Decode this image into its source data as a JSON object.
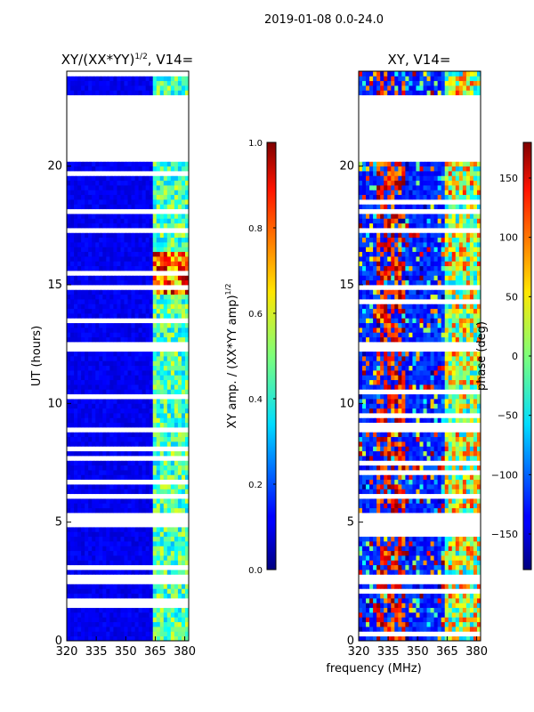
{
  "suptitle": "2019-01-08 0.0-24.0",
  "xlabel_shared": "frequency (MHz)",
  "colors": {
    "frame": "#000000",
    "gap": "#ffffff",
    "low": "#0000a8",
    "high": "#800000"
  },
  "chart_data": [
    {
      "type": "heatmap",
      "title_text": "XY/(XX*YY)",
      "title_sup": "1/2",
      "title_suffix": ", V14=",
      "ylabel": "UT (hours)",
      "xlim": [
        320,
        382
      ],
      "ylim": [
        0,
        24
      ],
      "xticks": [
        320,
        335,
        350,
        365,
        380
      ],
      "yticks": [
        0,
        5,
        10,
        15,
        20
      ],
      "colorbar": {
        "label_text": "XY amp. / (XX*YY amp)",
        "label_sup": "1/2",
        "range": [
          0.0,
          1.0
        ],
        "ticks": [
          0.0,
          0.2,
          0.4,
          0.6,
          0.8,
          1.0
        ],
        "tick_labels": [
          "0.0",
          "0.2",
          "0.4",
          "0.6",
          "0.8",
          "1.0"
        ],
        "colormap": "jet"
      },
      "data_gaps_hours": [
        [
          20.3,
          23.0
        ],
        [
          4.9,
          5.4
        ],
        [
          12.2,
          12.6
        ],
        [
          2.5,
          2.8
        ],
        [
          6.0,
          6.2
        ],
        [
          17.3,
          17.5
        ],
        [
          0.35,
          0.45
        ],
        [
          18.0,
          18.3
        ],
        [
          8.9,
          9.1
        ]
      ],
      "high_value_band_mhz": [
        362,
        382
      ],
      "peak_time_hours": [
        14.5,
        16.2
      ]
    },
    {
      "type": "heatmap",
      "title_text": "XY, V14=",
      "xlim": [
        320,
        382
      ],
      "ylim": [
        0,
        24
      ],
      "xticks": [
        320,
        335,
        350,
        365,
        380
      ],
      "yticks": [
        0,
        5,
        10,
        15,
        20
      ],
      "colorbar": {
        "label_text": "phase (deg)",
        "range": [
          -180,
          180
        ],
        "ticks": [
          -150,
          -100,
          -50,
          0,
          50,
          100,
          150
        ],
        "tick_labels": [
          "−150",
          "−100",
          "−50",
          "0",
          "50",
          "100",
          "150"
        ],
        "colormap": "jet"
      },
      "data_gaps_hours": [
        [
          20.3,
          23.0
        ],
        [
          4.9,
          5.4
        ],
        [
          12.2,
          12.6
        ],
        [
          2.5,
          2.8
        ],
        [
          6.0,
          6.2
        ],
        [
          17.3,
          17.5
        ],
        [
          0.35,
          0.45
        ],
        [
          18.0,
          18.3
        ],
        [
          8.9,
          9.1
        ]
      ],
      "high_value_band_mhz": [
        362,
        382
      ]
    }
  ]
}
